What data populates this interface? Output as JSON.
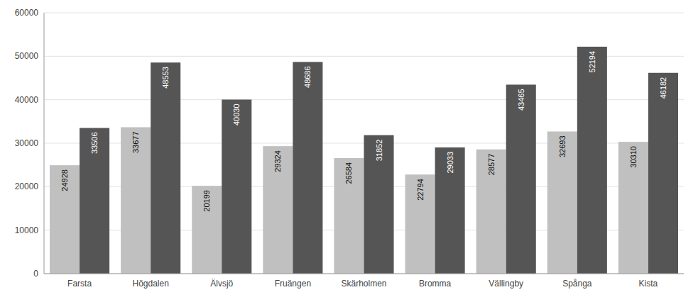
{
  "chart_data": {
    "type": "bar",
    "categories": [
      "Farsta",
      "Högdalen",
      "Älvsjö",
      "Fruängen",
      "Skärholmen",
      "Bromma",
      "Vällingby",
      "Spånga",
      "Kista"
    ],
    "series": [
      {
        "color": "#c0c0c0",
        "values": [
          24928,
          33677,
          20199,
          29324,
          26584,
          22794,
          28577,
          32693,
          30310
        ]
      },
      {
        "color": "#555555",
        "values": [
          33506,
          48553,
          40030,
          48686,
          31852,
          29033,
          43465,
          52194,
          46182
        ]
      }
    ],
    "ylim": [
      0,
      60000
    ],
    "yticks": [
      0,
      10000,
      20000,
      30000,
      40000,
      50000,
      60000
    ],
    "grid": true,
    "data_labels": true
  }
}
